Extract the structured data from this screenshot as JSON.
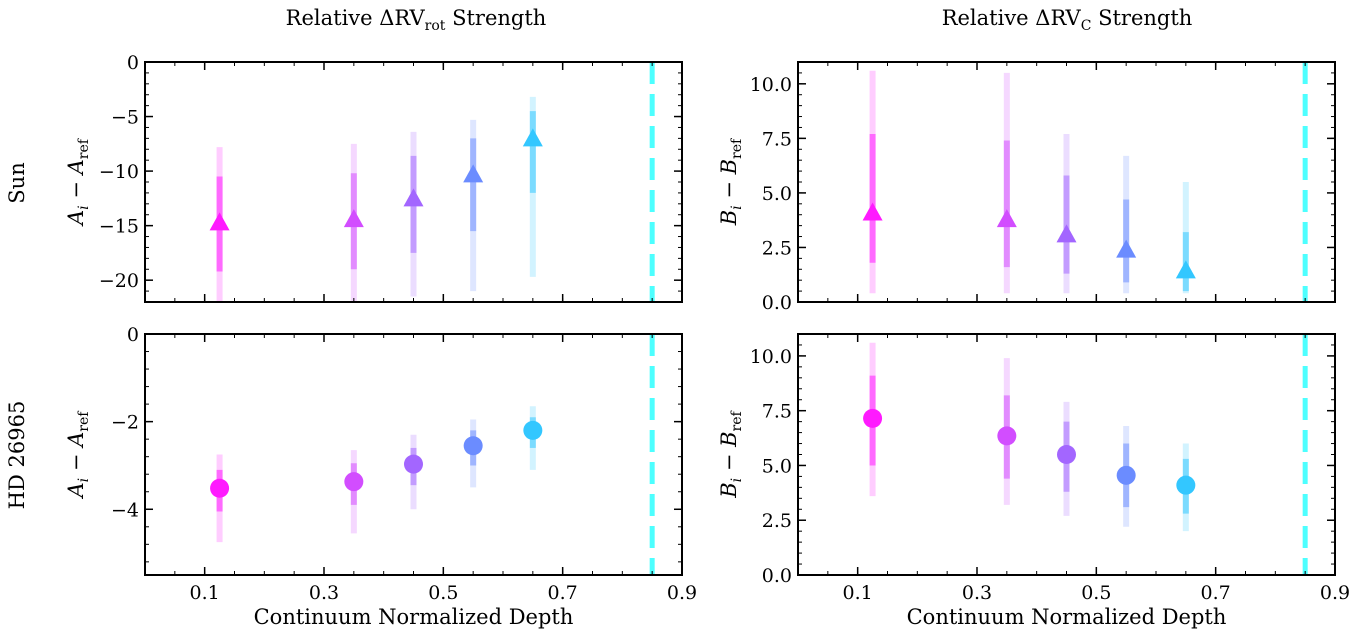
{
  "figure": {
    "column_titles": [
      {
        "prefix": "Relative ΔRV",
        "sub": "rot",
        "suffix": " Strength"
      },
      {
        "prefix": "Relative ΔRV",
        "sub": "C",
        "suffix": " Strength"
      }
    ],
    "row_labels": [
      "Sun",
      "HD 26965"
    ],
    "xlabel": "Continuum Normalized Depth",
    "reference_depth": 0.85,
    "reference_line_color": "#4dffff",
    "point_colors": [
      "#ff1aff",
      "#d24dff",
      "#a366ff",
      "#6b8cff",
      "#33c7ff"
    ]
  },
  "chart_data": [
    {
      "type": "scatter",
      "panel": "Sun · A",
      "title": "Relative ΔRVrot Strength",
      "ylabel": {
        "main": "A",
        "sub1": "i",
        "sep": " − ",
        "main2": "A",
        "sub2": "ref"
      },
      "marker": "triangle",
      "xlim": [
        0.0,
        0.9
      ],
      "ylim": [
        -22,
        0
      ],
      "xticks": [
        0.1,
        0.3,
        0.5,
        0.7,
        0.9
      ],
      "yticks": [
        0,
        -5,
        -10,
        -15,
        -20
      ],
      "ytick_labels": [
        "0",
        "−5",
        "−10",
        "−15",
        "−20"
      ],
      "show_xticklabels": false,
      "x": [
        0.125,
        0.35,
        0.45,
        0.55,
        0.65
      ],
      "y": [
        -14.7,
        -14.4,
        -12.5,
        -10.3,
        -7.0
      ],
      "err1_low": [
        -19.2,
        -19.0,
        -17.5,
        -15.5,
        -12.0
      ],
      "err1_high": [
        -10.5,
        -10.2,
        -8.6,
        -7.0,
        -4.5
      ],
      "err2_low": [
        -22.0,
        -22.0,
        -21.5,
        -21.0,
        -19.7
      ],
      "err2_high": [
        -7.8,
        -7.5,
        -6.4,
        -5.3,
        -3.2
      ]
    },
    {
      "type": "scatter",
      "panel": "Sun · B",
      "title": "Relative ΔRVC Strength",
      "ylabel": {
        "main": "B",
        "sub1": "i",
        "sep": " − ",
        "main2": "B",
        "sub2": "ref"
      },
      "marker": "triangle",
      "xlim": [
        0.0,
        0.9
      ],
      "ylim": [
        0,
        11
      ],
      "xticks": [
        0.1,
        0.3,
        0.5,
        0.7,
        0.9
      ],
      "yticks": [
        0,
        2.5,
        5,
        7.5,
        10
      ],
      "ytick_labels": [
        "0.0",
        "2.5",
        "5.0",
        "7.5",
        "10.0"
      ],
      "show_xticklabels": false,
      "x": [
        0.125,
        0.35,
        0.45,
        0.55,
        0.65
      ],
      "y": [
        4.1,
        3.8,
        3.1,
        2.4,
        1.45
      ],
      "err1_low": [
        1.8,
        1.6,
        1.3,
        0.9,
        0.5
      ],
      "err1_high": [
        7.7,
        7.4,
        5.8,
        4.7,
        3.2
      ],
      "err2_low": [
        0.4,
        0.4,
        0.4,
        0.4,
        0.4
      ],
      "err2_high": [
        10.6,
        10.5,
        7.7,
        6.7,
        5.5
      ]
    },
    {
      "type": "scatter",
      "panel": "HD 26965 · A",
      "ylabel": {
        "main": "A",
        "sub1": "i",
        "sep": " − ",
        "main2": "A",
        "sub2": "ref"
      },
      "marker": "circle",
      "xlim": [
        0.0,
        0.9
      ],
      "ylim": [
        -5.5,
        0
      ],
      "xticks": [
        0.1,
        0.3,
        0.5,
        0.7,
        0.9
      ],
      "xtick_labels": [
        "0.1",
        "0.3",
        "0.5",
        "0.7",
        "0.9"
      ],
      "yticks": [
        0,
        -2,
        -4
      ],
      "ytick_labels": [
        "0",
        "−2",
        "−4"
      ],
      "show_xticklabels": true,
      "x": [
        0.125,
        0.35,
        0.45,
        0.55,
        0.65
      ],
      "y": [
        -3.52,
        -3.37,
        -2.97,
        -2.55,
        -2.2
      ],
      "err1_low": [
        -4.05,
        -3.9,
        -3.45,
        -3.0,
        -2.6
      ],
      "err1_high": [
        -3.1,
        -2.95,
        -2.6,
        -2.2,
        -1.9
      ],
      "err2_low": [
        -4.75,
        -4.55,
        -4.0,
        -3.5,
        -3.1
      ],
      "err2_high": [
        -2.75,
        -2.65,
        -2.3,
        -1.95,
        -1.65
      ]
    },
    {
      "type": "scatter",
      "panel": "HD 26965 · B",
      "ylabel": {
        "main": "B",
        "sub1": "i",
        "sep": " − ",
        "main2": "B",
        "sub2": "ref"
      },
      "marker": "circle",
      "xlim": [
        0.0,
        0.9
      ],
      "ylim": [
        0,
        11
      ],
      "xticks": [
        0.1,
        0.3,
        0.5,
        0.7,
        0.9
      ],
      "xtick_labels": [
        "0.1",
        "0.3",
        "0.5",
        "0.7",
        "0.9"
      ],
      "yticks": [
        0,
        2.5,
        5,
        7.5,
        10
      ],
      "ytick_labels": [
        "0.0",
        "2.5",
        "5.0",
        "7.5",
        "10.0"
      ],
      "show_xticklabels": true,
      "x": [
        0.125,
        0.35,
        0.45,
        0.55,
        0.65
      ],
      "y": [
        7.15,
        6.35,
        5.5,
        4.55,
        4.1
      ],
      "err1_low": [
        5.0,
        4.4,
        3.8,
        3.1,
        2.8
      ],
      "err1_high": [
        9.1,
        8.2,
        7.0,
        6.0,
        5.3
      ],
      "err2_low": [
        3.6,
        3.2,
        2.7,
        2.2,
        2.0
      ],
      "err2_high": [
        10.6,
        9.9,
        7.9,
        6.8,
        6.0
      ]
    }
  ]
}
